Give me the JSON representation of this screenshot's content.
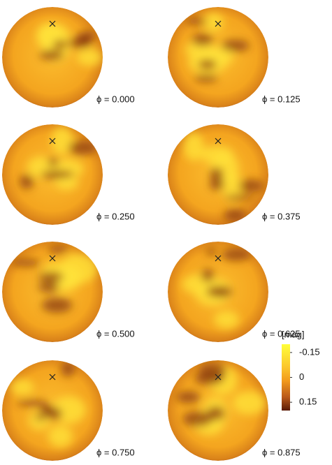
{
  "panels": [
    {
      "label": "ϕ = 0.000"
    },
    {
      "label": "ϕ = 0.125"
    },
    {
      "label": "ϕ = 0.250"
    },
    {
      "label": "ϕ = 0.375"
    },
    {
      "label": "ϕ = 0.500"
    },
    {
      "label": "ϕ = 0.625"
    },
    {
      "label": "ϕ = 0.750"
    },
    {
      "label": "ϕ = 0.875"
    }
  ],
  "colorbar": {
    "title": "[mag]",
    "lim": [
      -0.2,
      0.2
    ],
    "ticks": [
      -0.15,
      0,
      0.15
    ]
  }
}
